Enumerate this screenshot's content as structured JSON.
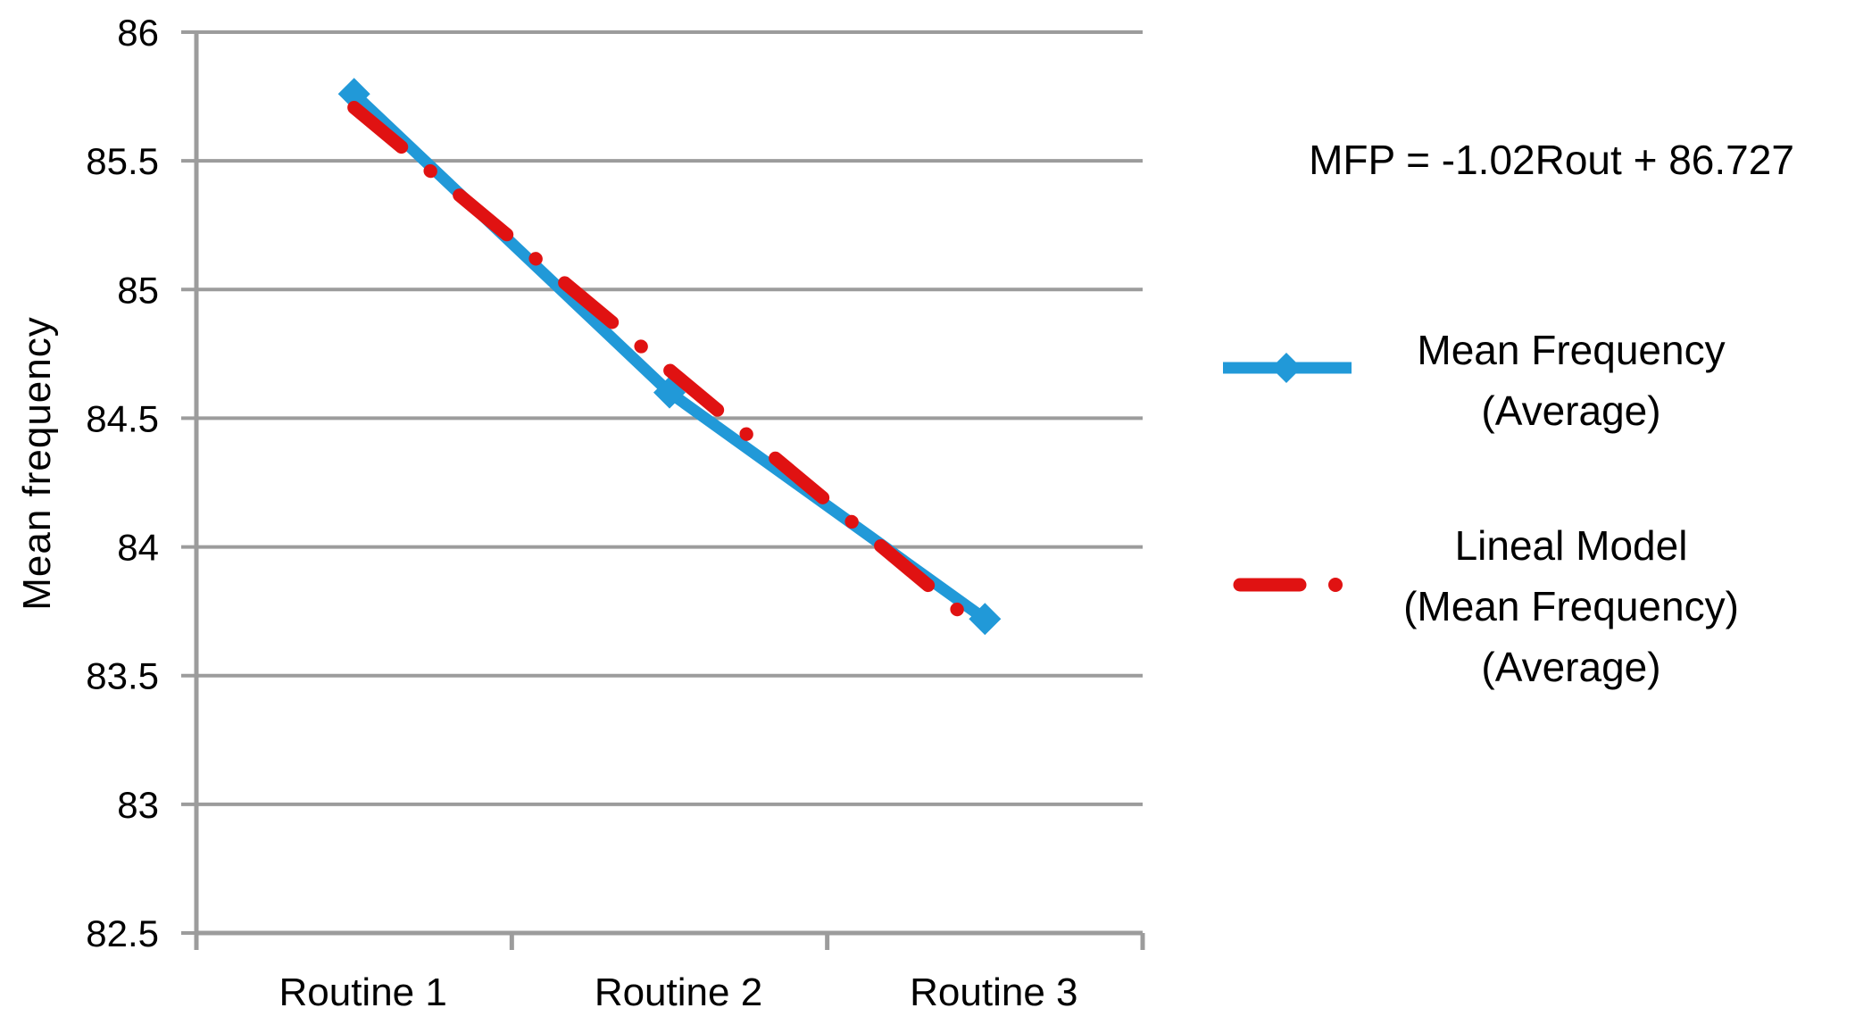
{
  "chart_data": {
    "type": "line",
    "title": "",
    "xlabel": "",
    "ylabel": "Mean frequency",
    "categories": [
      "Routine 1",
      "Routine 2",
      "Routine 3"
    ],
    "series": [
      {
        "name": "Mean Frequency (Average)",
        "values": [
          85.76,
          84.6,
          83.72
        ],
        "color": "#2199D8",
        "marker": "diamond",
        "style": "solid"
      },
      {
        "name": "Lineal Model (Mean Frequency) (Average)",
        "values": [
          85.707,
          84.687,
          83.667
        ],
        "slope": -1.02,
        "intercept": 86.727,
        "color": "#E01212",
        "marker": "none",
        "style": "dash-dot"
      }
    ],
    "y_axis": {
      "min": 82.5,
      "max": 86,
      "step": 0.5,
      "tick_labels": [
        "82.5",
        "83",
        "83.5",
        "84",
        "84.5",
        "85",
        "85.5",
        "86"
      ]
    },
    "grid": true,
    "legend_position": "right"
  },
  "annotation": {
    "equation": "MFP = -1.02Rout + 86.727"
  },
  "legend": {
    "items": [
      {
        "lines": [
          "Mean Frequency",
          "(Average)"
        ]
      },
      {
        "lines": [
          "Lineal Model",
          "(Mean Frequency)",
          "(Average)"
        ]
      }
    ]
  },
  "colors": {
    "series_blue": "#2199D8",
    "series_red": "#E01212",
    "grid_gray": "#9C9C9C",
    "text": "#000000"
  }
}
